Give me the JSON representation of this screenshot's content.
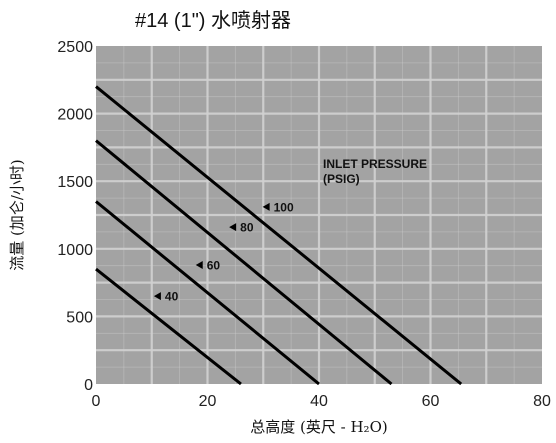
{
  "chart_data": {
    "type": "line",
    "title": "#14 (1\") 水喷射器",
    "xlabel": "总高度 (英尺 - H₂O)",
    "ylabel": "流量 (加仑/小时)",
    "xlim": [
      0,
      80
    ],
    "ylim": [
      0,
      2500
    ],
    "x_ticks": [
      "0",
      "20",
      "40",
      "60",
      "80"
    ],
    "y_ticks": [
      "0",
      "500",
      "1000",
      "1500",
      "2000",
      "2500"
    ],
    "grid": true,
    "legend_title": [
      "INLET PRESSURE",
      "(PSIG)"
    ],
    "series": [
      {
        "name": "100",
        "x": [
          0,
          65.5
        ],
        "y": [
          2200,
          0
        ]
      },
      {
        "name": "80",
        "x": [
          0,
          53.0
        ],
        "y": [
          1800,
          0
        ]
      },
      {
        "name": "60",
        "x": [
          0,
          40.0
        ],
        "y": [
          1350,
          0
        ]
      },
      {
        "name": "40",
        "x": [
          0,
          26.0
        ],
        "y": [
          850,
          0
        ]
      }
    ],
    "labels": [
      {
        "text": "100",
        "x": 31.5,
        "y": 1310
      },
      {
        "text": "80",
        "x": 25.5,
        "y": 1160
      },
      {
        "text": "60",
        "x": 19.5,
        "y": 880
      },
      {
        "text": "40",
        "x": 12.0,
        "y": 650
      }
    ],
    "colors": {
      "plot_bg": "#a3a3a3",
      "grid": "#d0d0d0",
      "line": "#000000"
    }
  }
}
